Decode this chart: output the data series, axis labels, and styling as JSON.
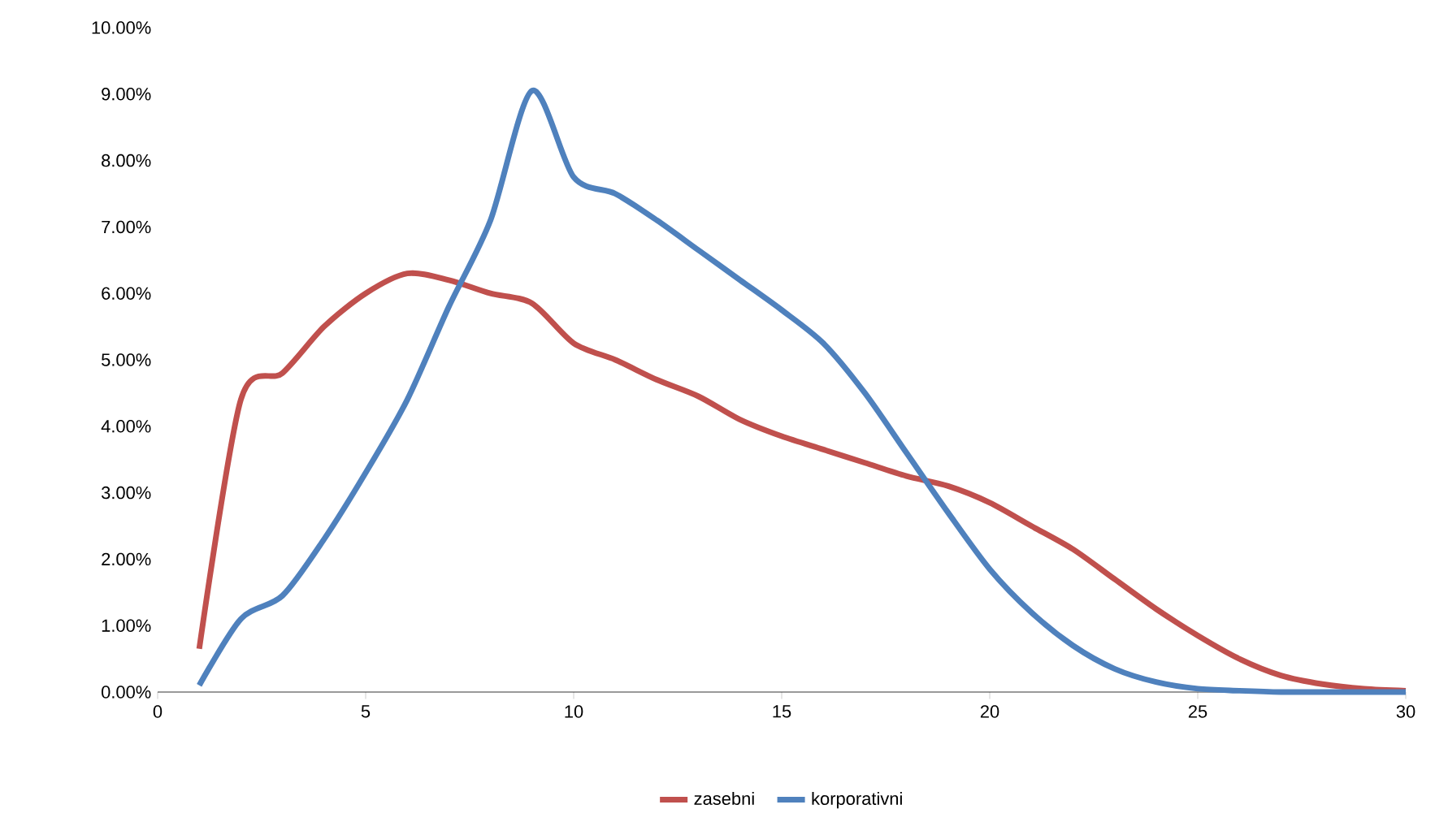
{
  "chart_data": {
    "type": "line",
    "x": [
      1,
      2,
      3,
      4,
      5,
      6,
      7,
      8,
      9,
      10,
      11,
      12,
      13,
      14,
      15,
      16,
      17,
      18,
      19,
      20,
      21,
      22,
      23,
      24,
      25,
      26,
      27,
      28,
      29,
      30
    ],
    "series": [
      {
        "name": "zasebni",
        "color": "#c0504d",
        "values": [
          0.65,
          4.4,
          4.8,
          5.5,
          6.0,
          6.3,
          6.2,
          6.0,
          5.85,
          5.25,
          5.0,
          4.7,
          4.45,
          4.1,
          3.85,
          3.65,
          3.45,
          3.25,
          3.1,
          2.85,
          2.5,
          2.15,
          1.7,
          1.25,
          0.85,
          0.5,
          0.25,
          0.12,
          0.05,
          0.02
        ]
      },
      {
        "name": "korporativni",
        "color": "#4f81bd",
        "values": [
          0.1,
          1.1,
          1.45,
          2.3,
          3.3,
          4.4,
          5.8,
          7.1,
          9.05,
          7.75,
          7.5,
          7.1,
          6.65,
          6.2,
          5.75,
          5.25,
          4.5,
          3.6,
          2.7,
          1.85,
          1.2,
          0.7,
          0.35,
          0.15,
          0.05,
          0.02,
          0,
          0,
          0,
          0
        ]
      }
    ],
    "xlim": [
      0,
      30
    ],
    "xticks": [
      0,
      5,
      10,
      15,
      20,
      25,
      30
    ],
    "ylim": [
      0,
      10
    ],
    "yticks": [
      {
        "value": 0,
        "label": "0.00%"
      },
      {
        "value": 1,
        "label": "1.00%"
      },
      {
        "value": 2,
        "label": "2.00%"
      },
      {
        "value": 3,
        "label": "3.00%"
      },
      {
        "value": 4,
        "label": "4.00%"
      },
      {
        "value": 5,
        "label": "5.00%"
      },
      {
        "value": 6,
        "label": "6.00%"
      },
      {
        "value": 7,
        "label": "7.00%"
      },
      {
        "value": 8,
        "label": "8.00%"
      },
      {
        "value": 9,
        "label": "9.00%"
      },
      {
        "value": 10,
        "label": "10.00%"
      }
    ],
    "legend": "bottom",
    "line_style": "solid"
  }
}
